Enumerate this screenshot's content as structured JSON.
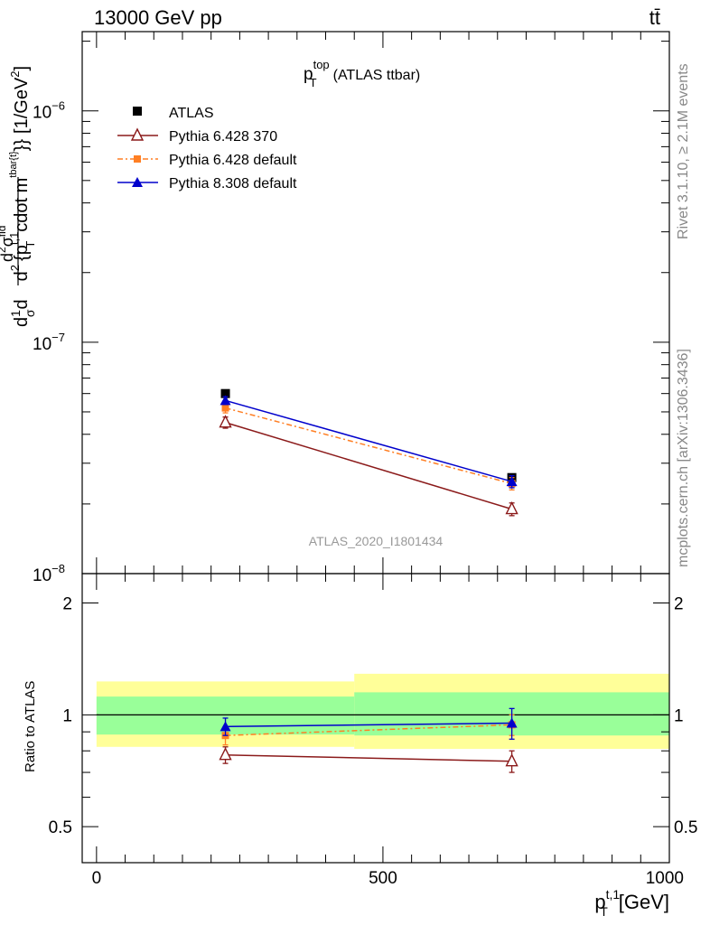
{
  "header": {
    "energy_label": "13000 GeV pp",
    "process_label": "tt̄"
  },
  "side_labels": {
    "rivet": "Rivet 3.1.10, ≥ 2.1M events",
    "source": "mcplots.cern.ch [arXiv:1306.3436]"
  },
  "watermark": "ATLAS_2020_I1801434",
  "legend": {
    "title_main": "p",
    "title_sup": "top",
    "title_sub": "T",
    "title_suffix": "(ATLAS ttbar)",
    "entries": [
      {
        "label": "ATLAS"
      },
      {
        "label": "Pythia 6.428 370"
      },
      {
        "label": "Pythia 6.428 default"
      },
      {
        "label": "Pythia 8.308 default"
      }
    ]
  },
  "colors": {
    "data": "#000000",
    "py6_370": "#8b1a1a",
    "py6_default": "#ff7f24",
    "py8_default": "#0000cc",
    "band_inner": "#99ff99",
    "band_outer": "#ffff99"
  },
  "chart_data": [
    {
      "type": "line",
      "title": "",
      "ylabel": "d1dσd d²σ^fid / d² {p_T^{t,1} cdot m^{tbar{t}}} [1/GeV²]",
      "ylabel_parts": {
        "lead": "d",
        "frac_num": "1",
        "frac_den": "σ",
        "mid": "d",
        "big_num": "d",
        "big_num_sup": "2",
        "big_num_sigma": "σ",
        "big_num_sigma_sup": "fid",
        "den_d": "d",
        "den_d_sup": "2",
        "den_open": "{p",
        "den_sup": "t,1",
        "den_sub": "T",
        "den_mid": "cdot m",
        "den_sup2": "tbar{t}",
        "den_close": "}}",
        "unit": "[1/GeV",
        "unit_sup": "2",
        "unit_close": "]"
      },
      "y_scale": "log",
      "ylim": [
        1e-08,
        2.2e-06
      ],
      "y_ticks": [
        {
          "base": "10",
          "exp": "−6",
          "value": 1e-06
        },
        {
          "base": "10",
          "exp": "−7",
          "value": 1e-07
        },
        {
          "base": "10",
          "exp": "−8",
          "value": 1e-08
        }
      ],
      "xlim": [
        -25,
        1000
      ],
      "series": [
        {
          "name": "ATLAS",
          "x": [
            225,
            725
          ],
          "y": [
            6e-08,
            2.6e-08
          ],
          "yerr": [
            1e-09,
            5e-10
          ],
          "marker": "square"
        },
        {
          "name": "Pythia 6.428 370",
          "x": [
            225,
            725
          ],
          "y": [
            4.5e-08,
            1.9e-08
          ],
          "yerr": [
            2.5e-09,
            1.2e-09
          ],
          "marker": "triangle-open"
        },
        {
          "name": "Pythia 6.428 default",
          "x": [
            225,
            725
          ],
          "y": [
            5.2e-08,
            2.45e-08
          ],
          "yerr": [
            2.5e-09,
            1.5e-09
          ],
          "marker": "square-small"
        },
        {
          "name": "Pythia 8.308 default",
          "x": [
            225,
            725
          ],
          "y": [
            5.6e-08,
            2.5e-08
          ],
          "yerr": [
            2.2e-09,
            1.5e-09
          ],
          "marker": "triangle"
        }
      ]
    },
    {
      "type": "line",
      "title": "",
      "ylabel": "Ratio to ATLAS",
      "xlabel_main": "p",
      "xlabel_sup": "t,1",
      "xlabel_sub": "T",
      "xlabel_unit": "[GeV]",
      "xlim": [
        -25,
        1000
      ],
      "ylim": [
        0.4,
        2.4
      ],
      "x_ticks": [
        {
          "label": "0",
          "value": 0
        },
        {
          "label": "500",
          "value": 500
        },
        {
          "label": "1000",
          "value": 1000
        }
      ],
      "y_ticks": [
        {
          "label": "2",
          "value": 2
        },
        {
          "label": "1",
          "value": 1
        },
        {
          "label": "0.5",
          "value": 0.5
        }
      ],
      "bands": [
        {
          "x": [
            0,
            450
          ],
          "inner": [
            0.885,
            1.12
          ],
          "outer": [
            0.82,
            1.23
          ]
        },
        {
          "x": [
            450,
            1000
          ],
          "inner": [
            0.88,
            1.15
          ],
          "outer": [
            0.81,
            1.29
          ]
        }
      ],
      "series": [
        {
          "name": "Pythia 6.428 370",
          "x": [
            225,
            725
          ],
          "y": [
            0.78,
            0.75
          ],
          "yerr": [
            0.04,
            0.05
          ]
        },
        {
          "name": "Pythia 6.428 default",
          "x": [
            225,
            725
          ],
          "y": [
            0.88,
            0.94
          ],
          "yerr": [
            0.05,
            0.06
          ]
        },
        {
          "name": "Pythia 8.308 default",
          "x": [
            225,
            725
          ],
          "y": [
            0.93,
            0.95
          ],
          "yerr": [
            0.05,
            0.09
          ]
        }
      ]
    }
  ]
}
